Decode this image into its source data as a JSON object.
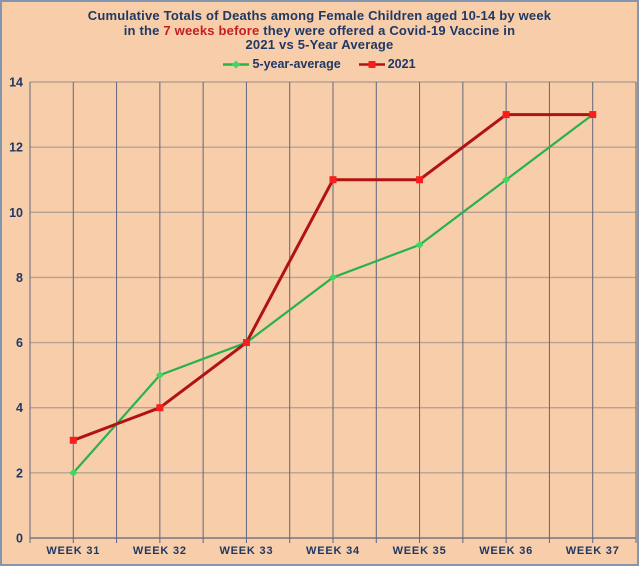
{
  "title": {
    "line1": "Cumulative Totals of Deaths among Female Children aged 10-14 by week",
    "line2_prefix": "in the ",
    "line2_highlight": "7 weeks before",
    "line2_suffix": " they were offered a Covid-19 Vaccine in",
    "line3": "2021 vs 5-Year Average"
  },
  "legend": {
    "items": [
      {
        "label": "5-year-average",
        "line_color": "#28b24b",
        "marker_color": "#44d662",
        "marker": "diamond"
      },
      {
        "label": "2021",
        "line_color": "#b11212",
        "marker_color": "#f91d1d",
        "marker": "square"
      }
    ]
  },
  "colors": {
    "background": "#f7cdaa",
    "frame_border": "#8496ad",
    "title_text": "#1f3864",
    "title_highlight": "#c41f1f",
    "axis_text": "#1f3864",
    "vertical_gridline": "#60667c",
    "horizontal_gridline": "rgba(96,102,124,0.42)",
    "axis_line": "#60667c"
  },
  "chart_data": {
    "type": "line",
    "categories": [
      "WEEK 31",
      "WEEK 32",
      "WEEK 33",
      "WEEK 34",
      "WEEK 35",
      "WEEK 36",
      "WEEK 37"
    ],
    "series": [
      {
        "name": "5-year-average",
        "values": [
          2,
          5,
          6,
          8,
          9,
          11,
          13
        ],
        "color": "#28b24b",
        "marker_color": "#44d662",
        "marker": "diamond",
        "line_width": 2.2
      },
      {
        "name": "2021",
        "values": [
          3,
          4,
          6,
          11,
          11,
          13,
          13
        ],
        "color": "#b11212",
        "marker_color": "#f91d1d",
        "marker": "square",
        "line_width": 3
      }
    ],
    "title": "Cumulative Totals of Deaths among Female Children aged 10-14 by week in the 7 weeks before they were offered a Covid-19 Vaccine in 2021 vs 5-Year Average",
    "xlabel": "",
    "ylabel": "",
    "ylim": [
      0,
      14
    ],
    "yticks": [
      0,
      2,
      4,
      6,
      8,
      10,
      12,
      14
    ],
    "grid": true,
    "vertical_gridlines_per_category": 2,
    "legend_position": "top"
  }
}
